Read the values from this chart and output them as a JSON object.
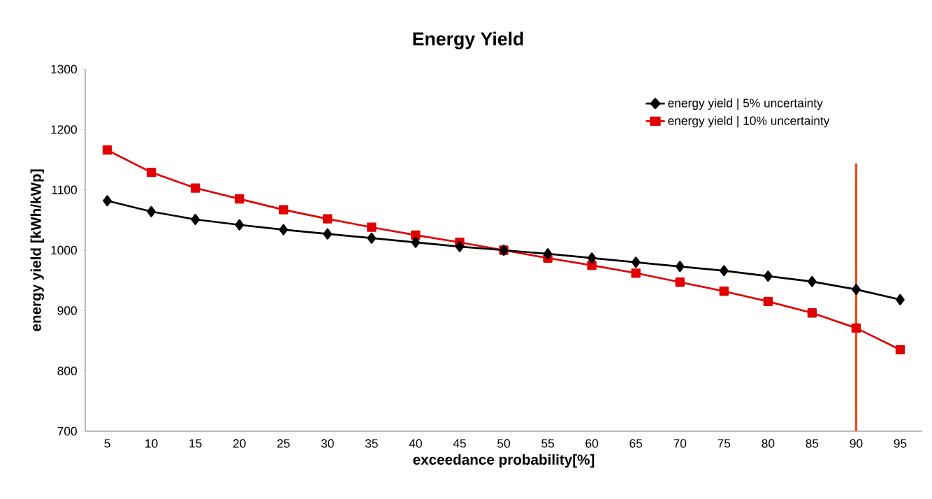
{
  "chart_data": {
    "type": "line",
    "title": "Energy Yield",
    "xlabel": "exceedance probability[%]",
    "ylabel": "energy yield  [kWh/kWp]",
    "categories": [
      "5",
      "10",
      "15",
      "20",
      "25",
      "30",
      "35",
      "40",
      "45",
      "50",
      "55",
      "60",
      "65",
      "70",
      "75",
      "80",
      "85",
      "90",
      "95"
    ],
    "series": [
      {
        "name": "energy yield | 5% uncertainty",
        "color": "#000000",
        "marker": "diamond",
        "values": [
          1082,
          1064,
          1051,
          1042,
          1034,
          1027,
          1020,
          1013,
          1006,
          1000,
          994,
          987,
          980,
          973,
          966,
          957,
          948,
          935,
          918
        ]
      },
      {
        "name": "energy yield | 10% uncertainty",
        "color": "#e00000",
        "marker": "square",
        "values": [
          1166,
          1129,
          1103,
          1085,
          1067,
          1052,
          1038,
          1025,
          1013,
          1000,
          987,
          975,
          962,
          947,
          932,
          915,
          896,
          871,
          835
        ]
      }
    ],
    "ylim": [
      700,
      1300
    ],
    "yticks": [
      700,
      800,
      900,
      1000,
      1100,
      1200,
      1300
    ],
    "grid": false,
    "legend": "top right",
    "line_style": "solid",
    "ref_lines": [
      {
        "axis": "x",
        "value": "90",
        "color": "#e8501a"
      }
    ]
  }
}
